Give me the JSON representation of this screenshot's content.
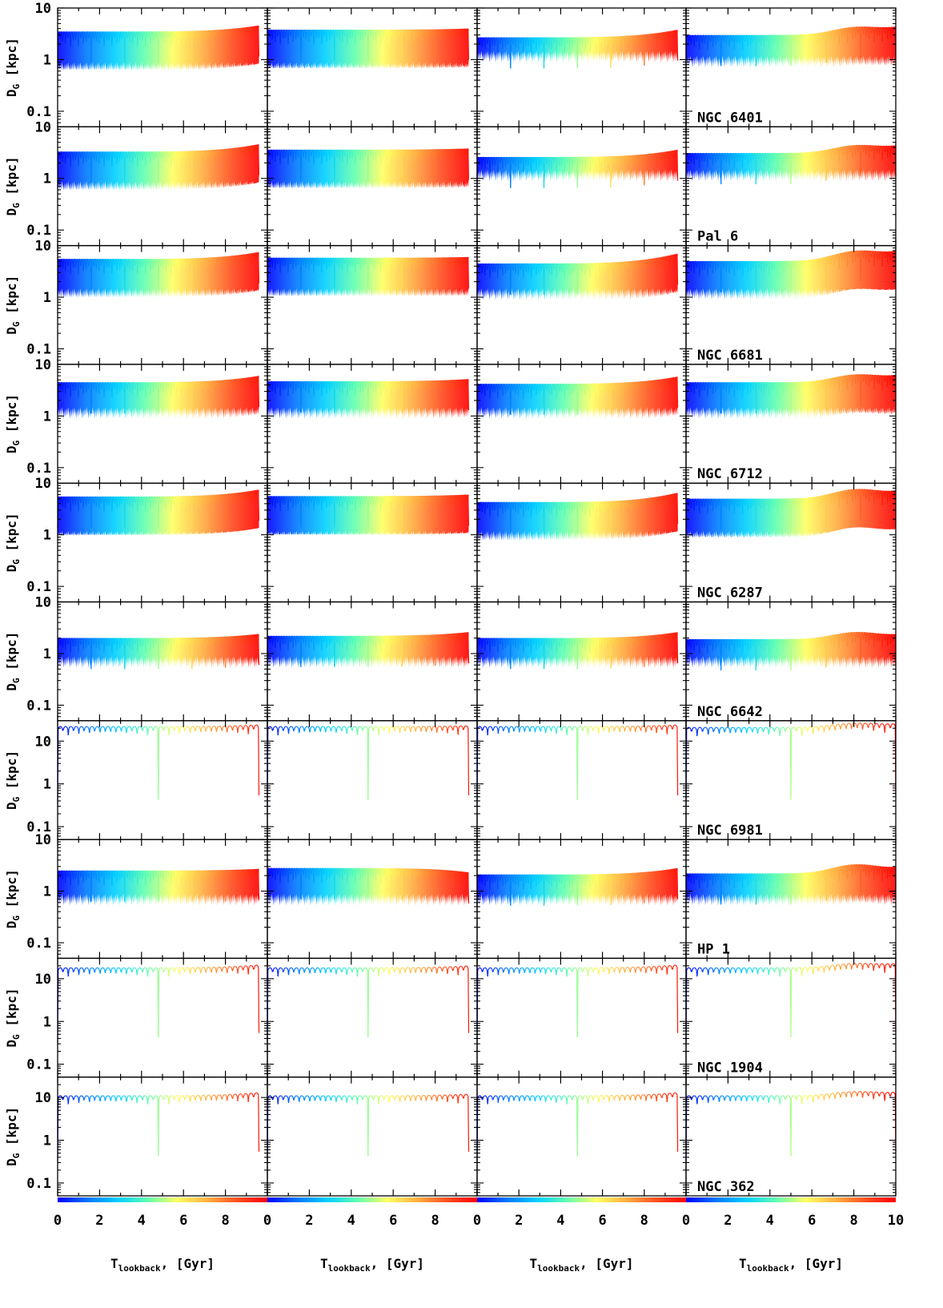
{
  "figure": {
    "ylabel": "D",
    "ylabel_sub": "G",
    "ylabel_unit": "[kpc]",
    "xlabel": "T",
    "xlabel_sub": "lookback",
    "xlabel_unit": ", [Gyr]",
    "colormap": [
      "#0000ff",
      "#0078ff",
      "#00d0ff",
      "#60ffb0",
      "#ffff60",
      "#ffb040",
      "#ff5020",
      "#ff0000"
    ]
  },
  "chart_data": {
    "type": "scatter",
    "x_range": [
      0,
      10
    ],
    "x_ticks": [
      "0",
      "2",
      "4",
      "6",
      "8"
    ],
    "x_ticks_last_column": [
      "0",
      "2",
      "4",
      "6",
      "8",
      "10"
    ],
    "y_scale": "log",
    "rows": [
      {
        "cluster": "NGC 6401",
        "ylim": [
          0.05,
          10
        ],
        "y_ticks": [
          "10",
          "1",
          "0.1"
        ],
        "style": "band",
        "panels": [
          {
            "min": 0.3,
            "max": 3.5,
            "end_rise": 4.6,
            "bump": 0
          },
          {
            "min": 0.3,
            "max": 3.8,
            "end_rise": 4.0,
            "bump": 0
          },
          {
            "min": 0.5,
            "max": 2.7,
            "end_rise": 3.8,
            "bump": 0
          },
          {
            "min": 0.4,
            "max": 3.0,
            "end_rise": 4.2,
            "bump": 1.3
          }
        ]
      },
      {
        "cluster": "Pal 6",
        "ylim": [
          0.05,
          10
        ],
        "y_ticks": [
          "10",
          "1",
          "0.1"
        ],
        "style": "band",
        "panels": [
          {
            "min": 0.3,
            "max": 3.3,
            "end_rise": 4.6,
            "bump": 0
          },
          {
            "min": 0.3,
            "max": 3.6,
            "end_rise": 3.8,
            "bump": 0
          },
          {
            "min": 0.5,
            "max": 2.6,
            "end_rise": 3.6,
            "bump": 0
          },
          {
            "min": 0.5,
            "max": 3.1,
            "end_rise": 4.2,
            "bump": 1.3
          }
        ]
      },
      {
        "cluster": "NGC 6681",
        "ylim": [
          0.05,
          10
        ],
        "y_ticks": [
          "10",
          "1",
          "0.1"
        ],
        "style": "band",
        "panels": [
          {
            "min": 0.5,
            "max": 5.5,
            "end_rise": 7.5,
            "bump": 0
          },
          {
            "min": 0.5,
            "max": 5.8,
            "end_rise": 6.0,
            "bump": 0
          },
          {
            "min": 0.5,
            "max": 4.5,
            "end_rise": 7.0,
            "bump": 0
          },
          {
            "min": 0.5,
            "max": 5.0,
            "end_rise": 7.5,
            "bump": 1.4
          }
        ]
      },
      {
        "cluster": "NGC 6712",
        "ylim": [
          0.05,
          10
        ],
        "y_ticks": [
          "10",
          "1",
          "0.1"
        ],
        "style": "band",
        "panels": [
          {
            "min": 0.5,
            "max": 4.5,
            "end_rise": 6.0,
            "bump": 0
          },
          {
            "min": 0.5,
            "max": 4.7,
            "end_rise": 5.2,
            "bump": 0
          },
          {
            "min": 0.5,
            "max": 4.2,
            "end_rise": 5.8,
            "bump": 0
          },
          {
            "min": 0.5,
            "max": 4.5,
            "end_rise": 6.0,
            "bump": 1.3
          }
        ]
      },
      {
        "cluster": "NGC 6287",
        "ylim": [
          0.05,
          10
        ],
        "y_ticks": [
          "10",
          "1",
          "0.1"
        ],
        "style": "band",
        "panels": [
          {
            "min": 0.4,
            "max": 5.5,
            "end_rise": 7.5,
            "bump": 0
          },
          {
            "min": 0.4,
            "max": 5.6,
            "end_rise": 6.0,
            "bump": 0
          },
          {
            "min": 0.4,
            "max": 4.3,
            "end_rise": 6.5,
            "bump": 0
          },
          {
            "min": 0.4,
            "max": 5.0,
            "end_rise": 6.8,
            "bump": 1.4
          }
        ]
      },
      {
        "cluster": "NGC 6642",
        "ylim": [
          0.05,
          10
        ],
        "y_ticks": [
          "10",
          "1",
          "0.1"
        ],
        "style": "band",
        "panels": [
          {
            "min": 0.3,
            "max": 2.0,
            "end_rise": 2.4,
            "bump": 0
          },
          {
            "min": 0.3,
            "max": 2.2,
            "end_rise": 2.6,
            "bump": 0
          },
          {
            "min": 0.3,
            "max": 2.0,
            "end_rise": 2.6,
            "bump": 0
          },
          {
            "min": 0.3,
            "max": 1.9,
            "end_rise": 2.3,
            "bump": 1.3
          }
        ]
      },
      {
        "cluster": "NGC 6981",
        "ylim": [
          0.05,
          30
        ],
        "y_ticks": [
          "10",
          "1",
          "0.1"
        ],
        "style": "arches",
        "panels": [
          {
            "min": 0.4,
            "max": 22,
            "end_rise": 24,
            "bump": 0
          },
          {
            "min": 0.4,
            "max": 22,
            "end_rise": 23,
            "bump": 0
          },
          {
            "min": 0.4,
            "max": 22,
            "end_rise": 24,
            "bump": 0
          },
          {
            "min": 0.4,
            "max": 21,
            "end_rise": 25,
            "bump": 1.2
          }
        ]
      },
      {
        "cluster": "HP 1",
        "ylim": [
          0.05,
          10
        ],
        "y_ticks": [
          "10",
          "1",
          "0.1"
        ],
        "style": "band",
        "panels": [
          {
            "min": 0.3,
            "max": 2.5,
            "end_rise": 2.7,
            "bump": 0
          },
          {
            "min": 0.3,
            "max": 2.8,
            "end_rise": 2.3,
            "bump": 0
          },
          {
            "min": 0.3,
            "max": 2.1,
            "end_rise": 2.8,
            "bump": 0
          },
          {
            "min": 0.3,
            "max": 2.2,
            "end_rise": 2.8,
            "bump": 1.4
          }
        ]
      },
      {
        "cluster": "NGC 1904",
        "ylim": [
          0.05,
          30
        ],
        "y_ticks": [
          "10",
          "1",
          "0.1"
        ],
        "style": "arches",
        "panels": [
          {
            "min": 0.4,
            "max": 18,
            "end_rise": 21,
            "bump": 0
          },
          {
            "min": 0.4,
            "max": 18,
            "end_rise": 20,
            "bump": 0
          },
          {
            "min": 0.4,
            "max": 18,
            "end_rise": 21,
            "bump": 0
          },
          {
            "min": 0.4,
            "max": 18,
            "end_rise": 22,
            "bump": 1.2
          }
        ]
      },
      {
        "cluster": "NGC 362",
        "ylim": [
          0.05,
          30
        ],
        "y_ticks": [
          "10",
          "1",
          "0.1"
        ],
        "style": "arches",
        "panels": [
          {
            "min": 0.4,
            "max": 11,
            "end_rise": 13,
            "bump": 0
          },
          {
            "min": 0.4,
            "max": 11,
            "end_rise": 12,
            "bump": 0
          },
          {
            "min": 0.4,
            "max": 11,
            "end_rise": 13,
            "bump": 0
          },
          {
            "min": 0.4,
            "max": 11,
            "end_rise": 13,
            "bump": 1.2
          }
        ]
      }
    ]
  }
}
